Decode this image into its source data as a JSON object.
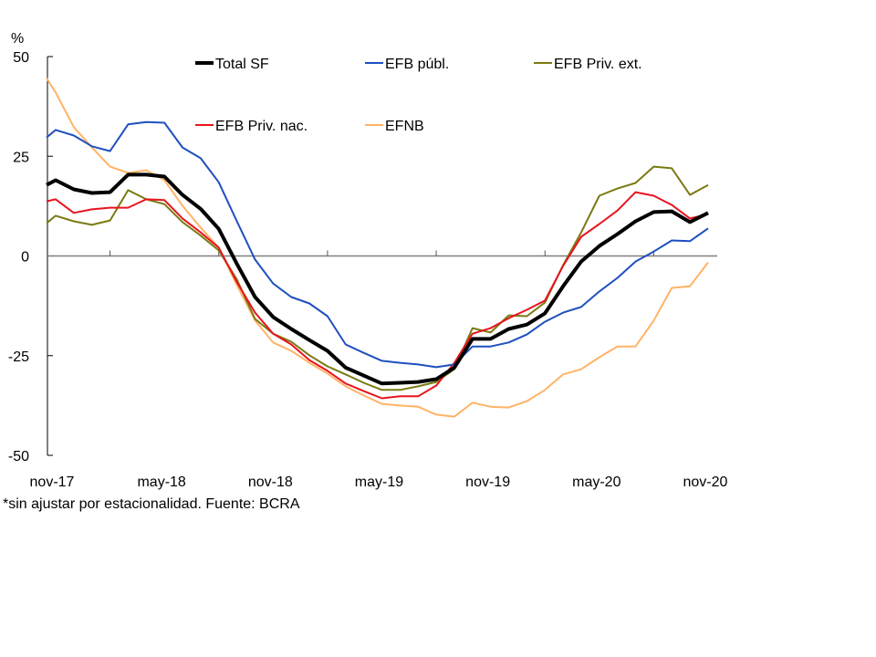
{
  "chart_data": {
    "type": "line",
    "title": "",
    "ylabel": "%",
    "xlabel": "",
    "ylim": [
      -50,
      50
    ],
    "yticks": [
      50,
      25,
      0,
      -25,
      -50
    ],
    "x_tick_labels": [
      {
        "label": "nov-17",
        "index": 1
      },
      {
        "label": "may-18",
        "index": 7
      },
      {
        "label": "nov-18",
        "index": 13
      },
      {
        "label": "may-19",
        "index": 19
      },
      {
        "label": "nov-19",
        "index": 25
      },
      {
        "label": "may-20",
        "index": 31
      },
      {
        "label": "nov-20",
        "index": 37
      }
    ],
    "legend_position": "top-center",
    "grid": false,
    "series": [
      {
        "name": "Total SF",
        "color": "#000000",
        "bold": true,
        "values": [
          17.8,
          19.0,
          16.7,
          15.8,
          16.0,
          20.4,
          20.4,
          19.9,
          15.3,
          11.8,
          6.8,
          -2.0,
          -10.3,
          -15.3,
          -18.3,
          -21.1,
          -23.8,
          -28.0,
          -30.0,
          -32.0,
          -31.8,
          -31.6,
          -30.9,
          -28.0,
          -20.8,
          -20.8,
          -18.3,
          -17.2,
          -14.4,
          -7.6,
          -1.4,
          2.5,
          5.5,
          8.7,
          11.0,
          11.2,
          8.5,
          10.8
        ]
      },
      {
        "name": "EFB públ.",
        "color": "#1f4fbf",
        "values": [
          29.7,
          31.6,
          30.2,
          27.5,
          26.3,
          33.0,
          33.6,
          33.4,
          27.2,
          24.5,
          18.5,
          8.7,
          -0.9,
          -6.9,
          -10.3,
          -11.9,
          -15.1,
          -22.2,
          -24.3,
          -26.3,
          -26.8,
          -27.2,
          -27.9,
          -27.2,
          -22.7,
          -22.7,
          -21.7,
          -19.7,
          -16.5,
          -14.2,
          -12.8,
          -8.9,
          -5.5,
          -1.4,
          1.1,
          3.9,
          3.7,
          6.9
        ]
      },
      {
        "name": "EFB Priv. ext.",
        "color": "#7a7a12",
        "values": [
          8.2,
          10.1,
          8.7,
          7.8,
          8.9,
          16.5,
          14.2,
          13.0,
          8.5,
          5.1,
          1.4,
          -5.9,
          -15.8,
          -19.5,
          -21.5,
          -24.9,
          -27.7,
          -29.7,
          -31.8,
          -33.6,
          -33.6,
          -32.7,
          -31.6,
          -28.4,
          -18.1,
          -19.2,
          -14.9,
          -15.1,
          -11.7,
          -2.3,
          5.9,
          15.1,
          16.9,
          18.3,
          22.4,
          22.0,
          15.3,
          17.8
        ]
      },
      {
        "name": "EFB Priv. nac.",
        "color": "#e8141e",
        "values": [
          13.7,
          14.2,
          10.8,
          11.7,
          12.1,
          12.1,
          14.2,
          14.0,
          9.4,
          5.9,
          2.1,
          -6.6,
          -14.2,
          -19.5,
          -22.2,
          -26.1,
          -28.8,
          -32.0,
          -33.9,
          -35.7,
          -35.2,
          -35.2,
          -32.5,
          -26.8,
          -19.5,
          -18.1,
          -15.6,
          -13.5,
          -11.2,
          -2.5,
          4.8,
          8.0,
          11.4,
          16.0,
          15.1,
          12.8,
          9.4,
          10.5
        ]
      },
      {
        "name": "EFNB",
        "color": "#ffb366",
        "values": [
          44.6,
          41.0,
          32.3,
          27.2,
          22.4,
          20.8,
          21.5,
          19.0,
          12.6,
          7.1,
          2.1,
          -7.3,
          -16.2,
          -21.7,
          -23.8,
          -26.8,
          -29.5,
          -32.7,
          -35.0,
          -37.1,
          -37.5,
          -37.8,
          -39.8,
          -40.3,
          -36.8,
          -37.8,
          -38.0,
          -36.4,
          -33.6,
          -29.7,
          -28.4,
          -25.4,
          -22.7,
          -22.7,
          -16.2,
          -8.0,
          -7.6,
          -1.6
        ]
      }
    ]
  },
  "footnote": "*sin ajustar por estacionalidad. Fuente: BCRA"
}
